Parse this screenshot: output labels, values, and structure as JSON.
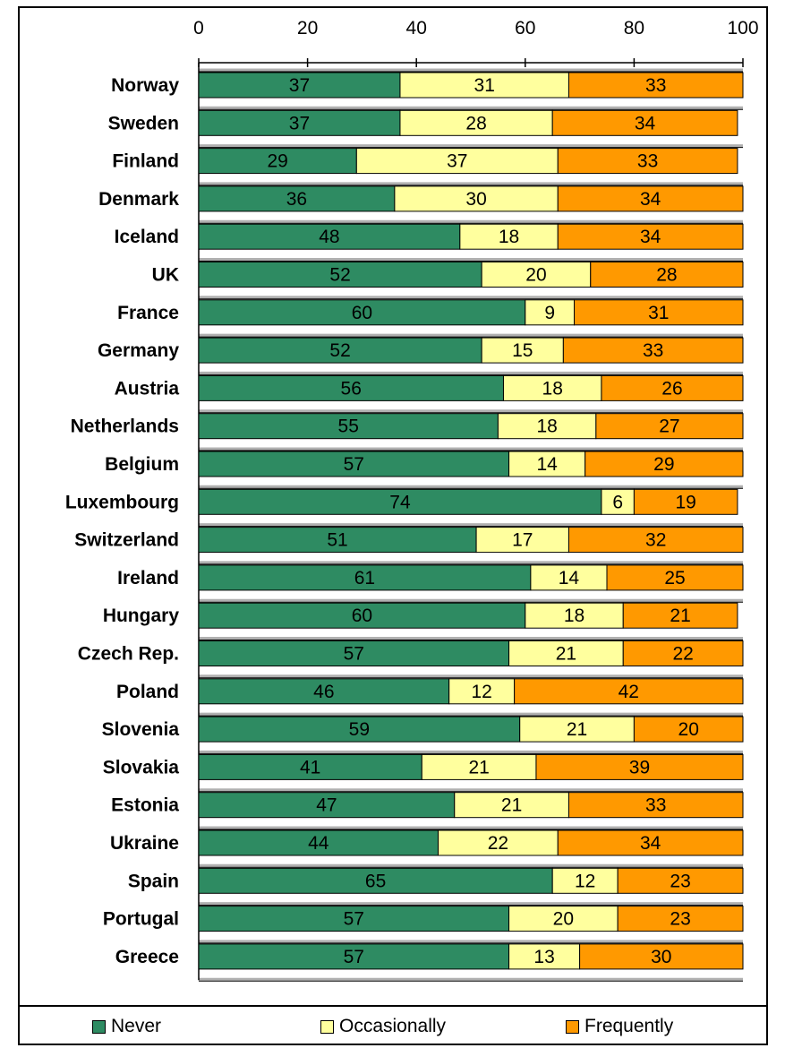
{
  "chart_data": {
    "type": "bar",
    "orientation": "horizontal",
    "stacked": true,
    "categories": [
      "Norway",
      "Sweden",
      "Finland",
      "Denmark",
      "Iceland",
      "UK",
      "France",
      "Germany",
      "Austria",
      "Netherlands",
      "Belgium",
      "Luxembourg",
      "Switzerland",
      "Ireland",
      "Hungary",
      "Czech Rep.",
      "Poland",
      "Slovenia",
      "Slovakia",
      "Estonia",
      "Ukraine",
      "Spain",
      "Portugal",
      "Greece"
    ],
    "series": [
      {
        "name": "Never",
        "color": "#2e8b62",
        "values": [
          37,
          37,
          29,
          36,
          48,
          52,
          60,
          52,
          56,
          55,
          57,
          74,
          51,
          61,
          60,
          57,
          46,
          59,
          41,
          47,
          44,
          65,
          57,
          57
        ]
      },
      {
        "name": "Occasionally",
        "color": "#ffff9e",
        "values": [
          31,
          28,
          37,
          30,
          18,
          20,
          9,
          15,
          18,
          18,
          14,
          6,
          17,
          14,
          18,
          21,
          12,
          21,
          21,
          21,
          22,
          12,
          20,
          13
        ]
      },
      {
        "name": "Frequently",
        "color": "#ff9900",
        "values": [
          33,
          34,
          33,
          34,
          34,
          28,
          31,
          33,
          26,
          27,
          29,
          19,
          32,
          25,
          21,
          22,
          42,
          20,
          39,
          33,
          34,
          23,
          23,
          30
        ]
      }
    ],
    "xlim": [
      0,
      100
    ],
    "xticks": [
      "0",
      "20",
      "40",
      "60",
      "80",
      "100"
    ],
    "x_axis_position": "top",
    "legend_position": "bottom",
    "grid": false
  }
}
